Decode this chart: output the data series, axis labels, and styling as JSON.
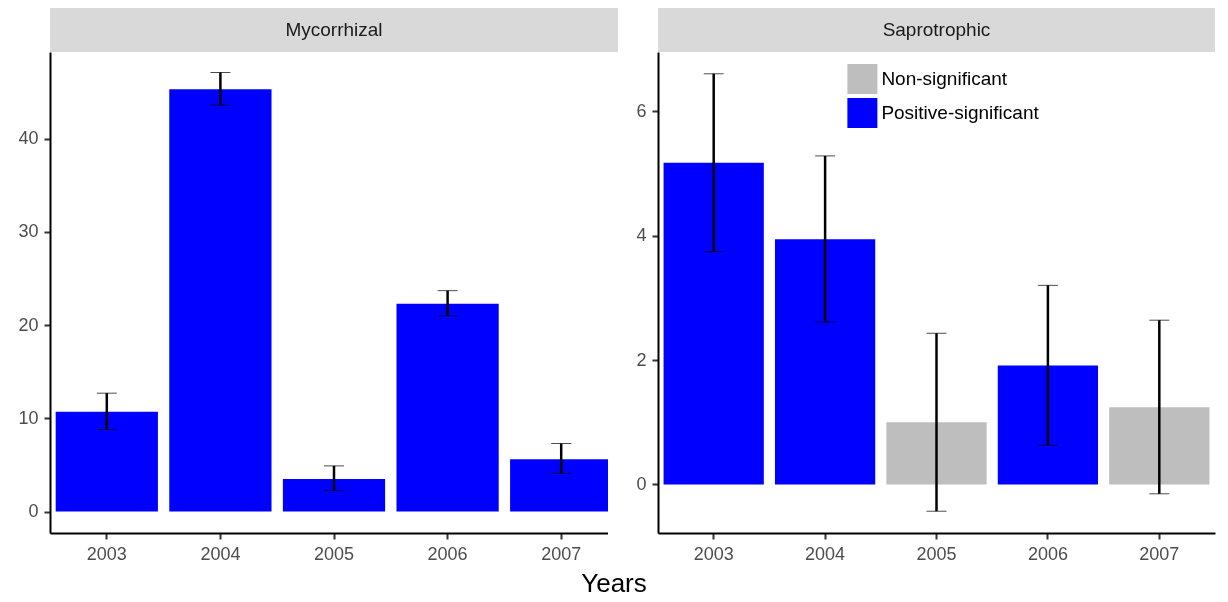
{
  "chart_data": [
    {
      "type": "bar",
      "title": "Mycorrhizal",
      "xlabel": "Years",
      "categories": [
        "2003",
        "2004",
        "2005",
        "2006",
        "2007"
      ],
      "series": [
        {
          "color": "#0000ff",
          "values": [
            10.7,
            45.3,
            3.5,
            22.3,
            5.6
          ],
          "errors": [
            [
              8.8,
              12.7
            ],
            [
              43.6,
              47.1
            ],
            [
              2.25,
              4.9
            ],
            [
              21.0,
              23.7
            ],
            [
              4.1,
              7.3
            ]
          ]
        }
      ],
      "ylim": [
        -2.3,
        49.3
      ],
      "yticks": [
        0,
        10,
        20,
        30,
        40
      ],
      "grid": false,
      "legend": false
    },
    {
      "type": "bar",
      "title": "Saprotrophic",
      "categories": [
        "2003",
        "2004",
        "2005",
        "2006",
        "2007"
      ],
      "series": [
        {
          "name": "Non-significant",
          "color": "#bebebe",
          "values": [
            null,
            null,
            1.0,
            null,
            1.24
          ],
          "errors": [
            null,
            null,
            [
              -0.43,
              2.43
            ],
            null,
            [
              -0.15,
              2.64
            ]
          ]
        },
        {
          "name": "Positive-significant",
          "color": "#0000ff",
          "values": [
            5.17,
            3.94,
            null,
            1.91,
            null
          ],
          "errors": [
            [
              3.74,
              6.6
            ],
            [
              2.61,
              5.28
            ],
            null,
            [
              0.63,
              3.2
            ],
            null
          ]
        }
      ],
      "ylim": [
        -0.78,
        6.95
      ],
      "yticks": [
        0,
        2,
        4,
        6
      ],
      "grid": false,
      "legend": "top"
    }
  ]
}
